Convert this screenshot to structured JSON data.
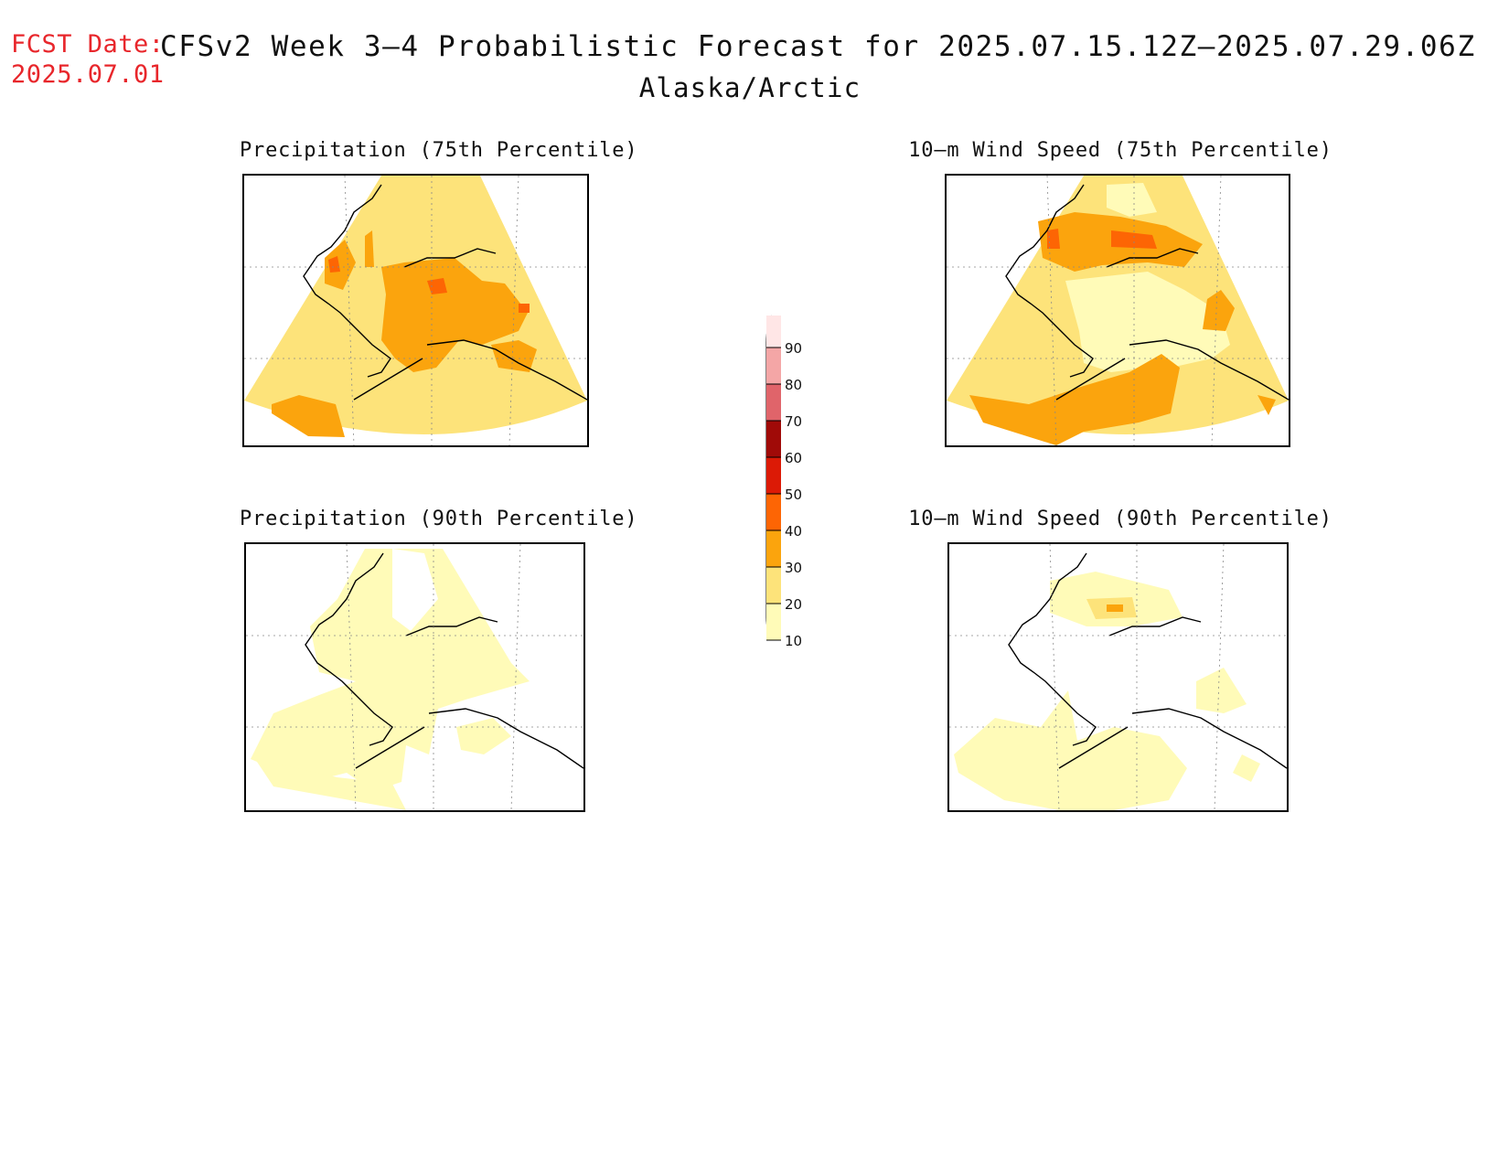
{
  "header": {
    "fcst_label": "FCST Date:",
    "fcst_date": "2025.07.01",
    "title": "CFSv2 Week 3–4 Probabilistic Forecast for 2025.07.15.12Z–2025.07.29.06Z",
    "region": "Alaska/Arctic"
  },
  "panels": [
    {
      "title": "Precipitation (75th Percentile)"
    },
    {
      "title": "10–m Wind Speed (75th Percentile)"
    },
    {
      "title": "Precipitation (90th Percentile)"
    },
    {
      "title": "10–m Wind Speed (90th Percentile)"
    }
  ],
  "colorbar": {
    "levels": [
      "90",
      "80",
      "70",
      "60",
      "50",
      "40",
      "30",
      "20",
      "10"
    ],
    "colors": {
      "10-20": "#fffbb8",
      "20-30": "#fde37a",
      "30-40": "#fba40d",
      "40-50": "#fd6504",
      "50-60": "#dc1a06",
      "60-70": "#a00a08",
      "70-80": "#e0646a",
      "80-90": "#f4a6a6",
      "90+": "#ffe6e6"
    }
  },
  "colors": {
    "label_red": "#e8262b",
    "coastline": "#000000"
  }
}
